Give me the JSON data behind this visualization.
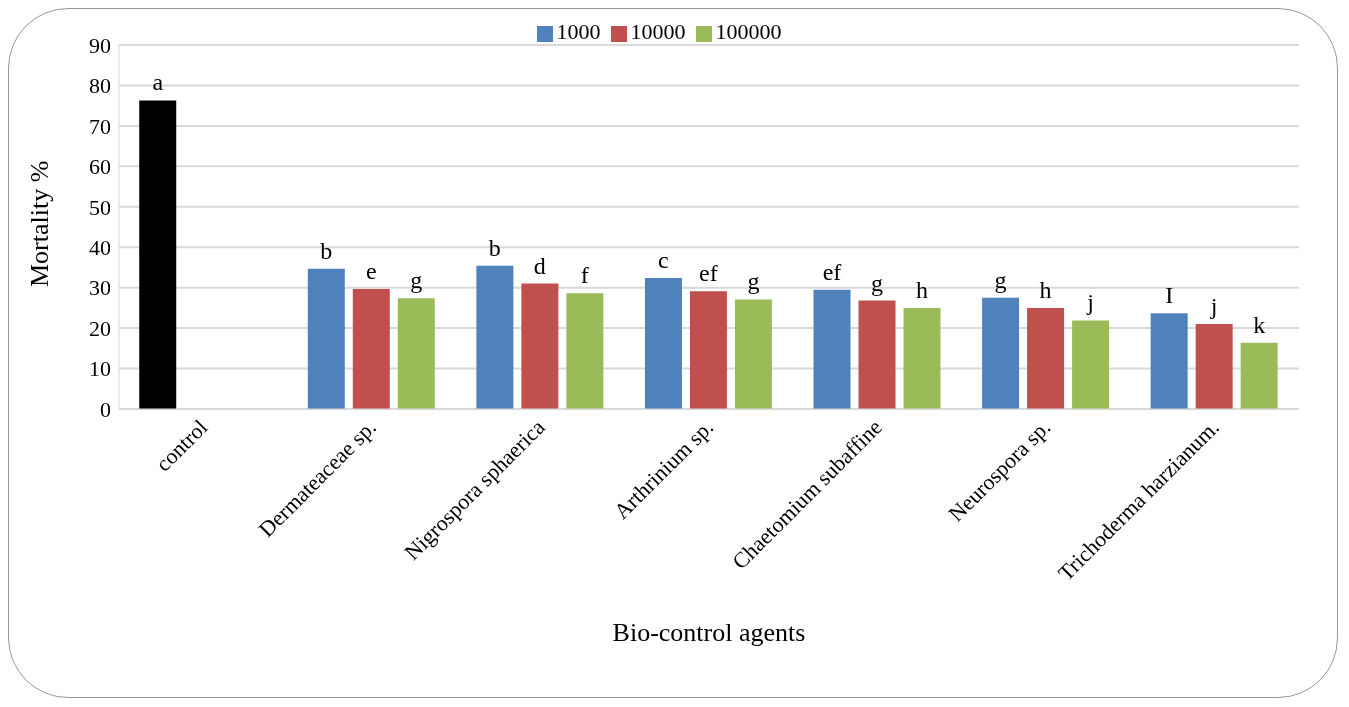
{
  "chart_data": {
    "type": "bar",
    "xlabel": "Bio-control agents",
    "ylabel": "Mortality %",
    "categories": [
      "control",
      "Dermateaceae sp.",
      "Nigrospora sphaerica",
      "Arthrinium sp.",
      "Chaetomium subaffine",
      "Neurospora sp.",
      "Trichoderma harzianum."
    ],
    "series": [
      {
        "name": "1000",
        "color": "#4f81bd",
        "colors": [
          "#000000",
          "#4f81bd",
          "#4f81bd",
          "#4f81bd",
          "#4f81bd",
          "#4f81bd",
          "#4f81bd"
        ],
        "values": [
          76.3,
          34.7,
          35.4,
          32.4,
          29.5,
          27.5,
          23.7
        ],
        "value_labels": [
          "a",
          "b",
          "b",
          "c",
          "ef",
          "g",
          "I"
        ]
      },
      {
        "name": "10000",
        "color": "#c0504d",
        "values": [
          null,
          29.7,
          31.0,
          29.1,
          26.8,
          25.0,
          21.0
        ],
        "value_labels": [
          null,
          "e",
          "d",
          "ef",
          "g",
          "h",
          "j"
        ]
      },
      {
        "name": "100000",
        "color": "#9bbb59",
        "values": [
          null,
          27.4,
          28.6,
          27.1,
          25.0,
          21.9,
          16.4
        ],
        "value_labels": [
          null,
          "g",
          "f",
          "g",
          "h",
          "j",
          "k"
        ]
      }
    ],
    "ylim": [
      0,
      90
    ],
    "yticks": [
      0,
      10,
      20,
      30,
      40,
      50,
      60,
      70,
      80,
      90
    ],
    "grid": "y",
    "legend": "top"
  }
}
